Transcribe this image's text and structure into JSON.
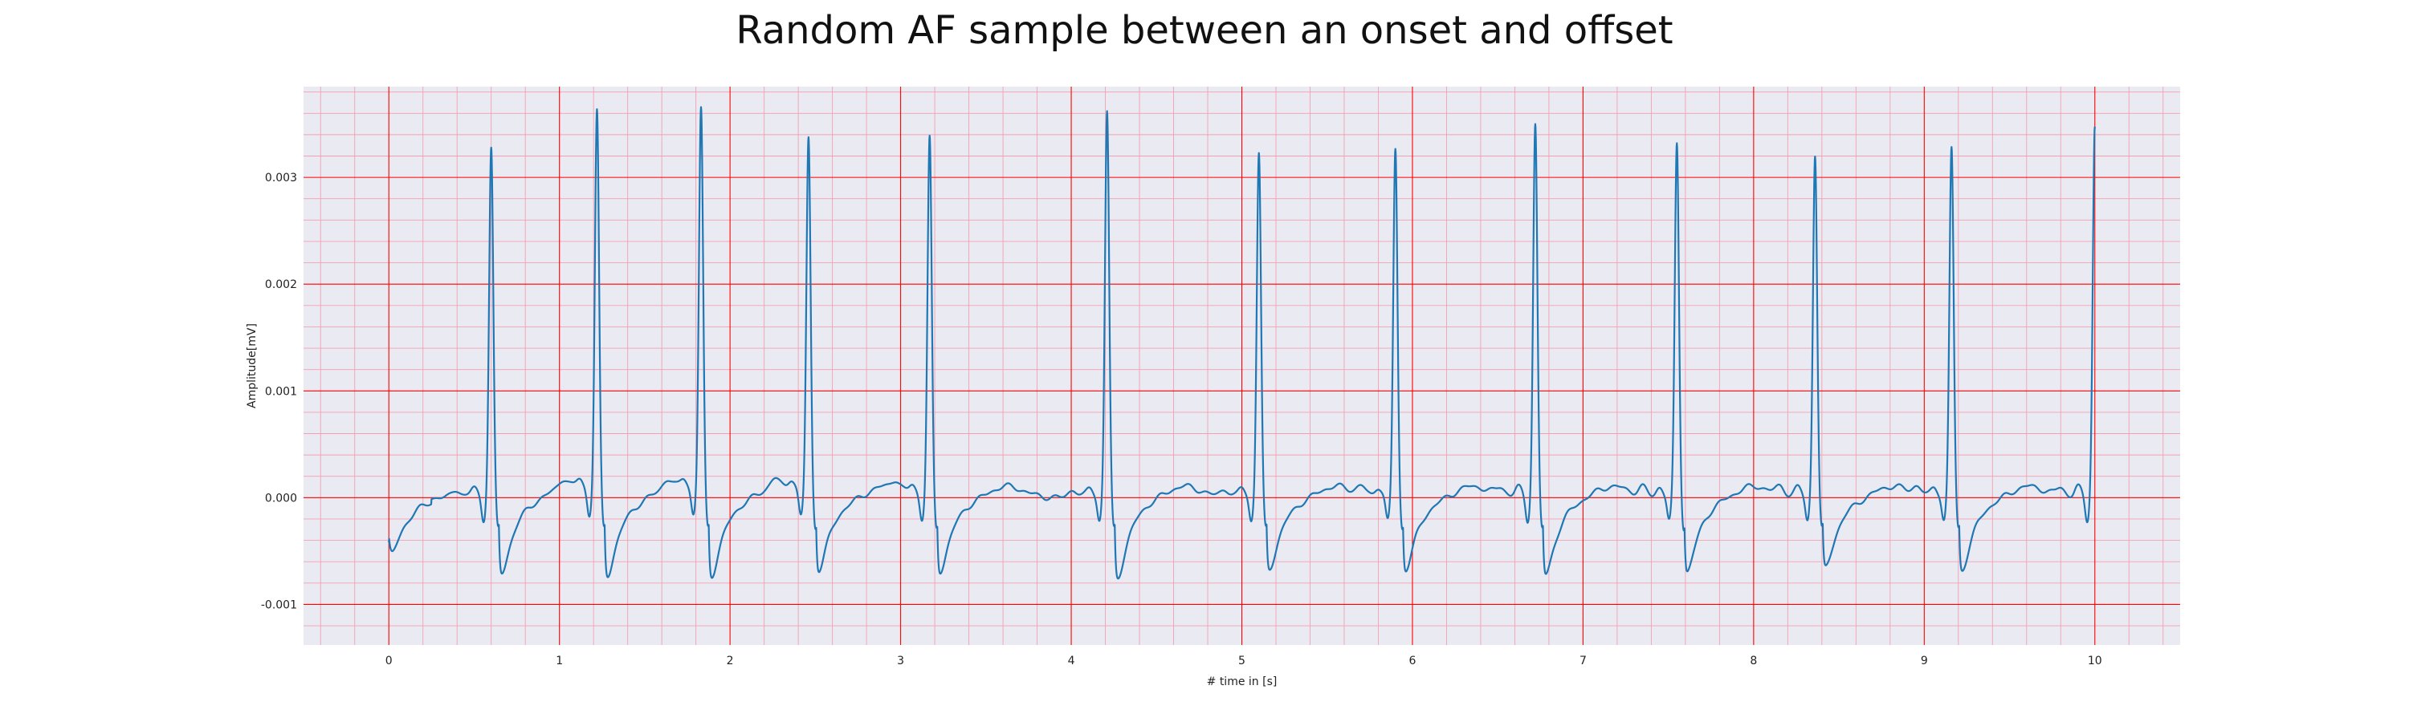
{
  "chart_data": {
    "type": "line",
    "title": "Random AF sample between an onset and offset",
    "xlabel": "# time in [s]",
    "ylabel": "Amplitude[mV]",
    "xlim": [
      -0.5,
      10.5
    ],
    "ylim": [
      -0.00138,
      0.00385
    ],
    "xticks": [
      "0",
      "1",
      "2",
      "3",
      "4",
      "5",
      "6",
      "7",
      "8",
      "9",
      "10"
    ],
    "yticks": [
      "-0.001",
      "0.000",
      "0.001",
      "0.002",
      "0.003"
    ],
    "grid": true,
    "colors": {
      "line": "#1f77b4",
      "background": "#eaeaf2",
      "major_grid": "#ff0000",
      "minor_grid": "#f2a0b0"
    },
    "series": [
      {
        "beats": [
          {
            "t": 0.6,
            "peak": 0.00328,
            "trough": -0.00108
          },
          {
            "t": 1.22,
            "peak": 0.0036,
            "trough": -0.00112
          },
          {
            "t": 1.83,
            "peak": 0.00362,
            "trough": -0.00113
          },
          {
            "t": 2.46,
            "peak": 0.00335,
            "trough": -0.00103
          },
          {
            "t": 3.17,
            "peak": 0.00337,
            "trough": -0.00105
          },
          {
            "t": 4.21,
            "peak": 0.00362,
            "trough": -0.00115
          },
          {
            "t": 5.1,
            "peak": 0.00323,
            "trough": -0.00102
          },
          {
            "t": 5.9,
            "peak": 0.00327,
            "trough": -0.00102
          },
          {
            "t": 6.72,
            "peak": 0.0035,
            "trough": -0.0011
          },
          {
            "t": 7.55,
            "peak": 0.00332,
            "trough": -0.00105
          },
          {
            "t": 8.36,
            "peak": 0.00322,
            "trough": -0.001
          },
          {
            "t": 9.16,
            "peak": 0.00328,
            "trough": -0.00103
          },
          {
            "t": 10.0,
            "peak": 0.00348,
            "trough": 0.0
          }
        ]
      }
    ]
  }
}
